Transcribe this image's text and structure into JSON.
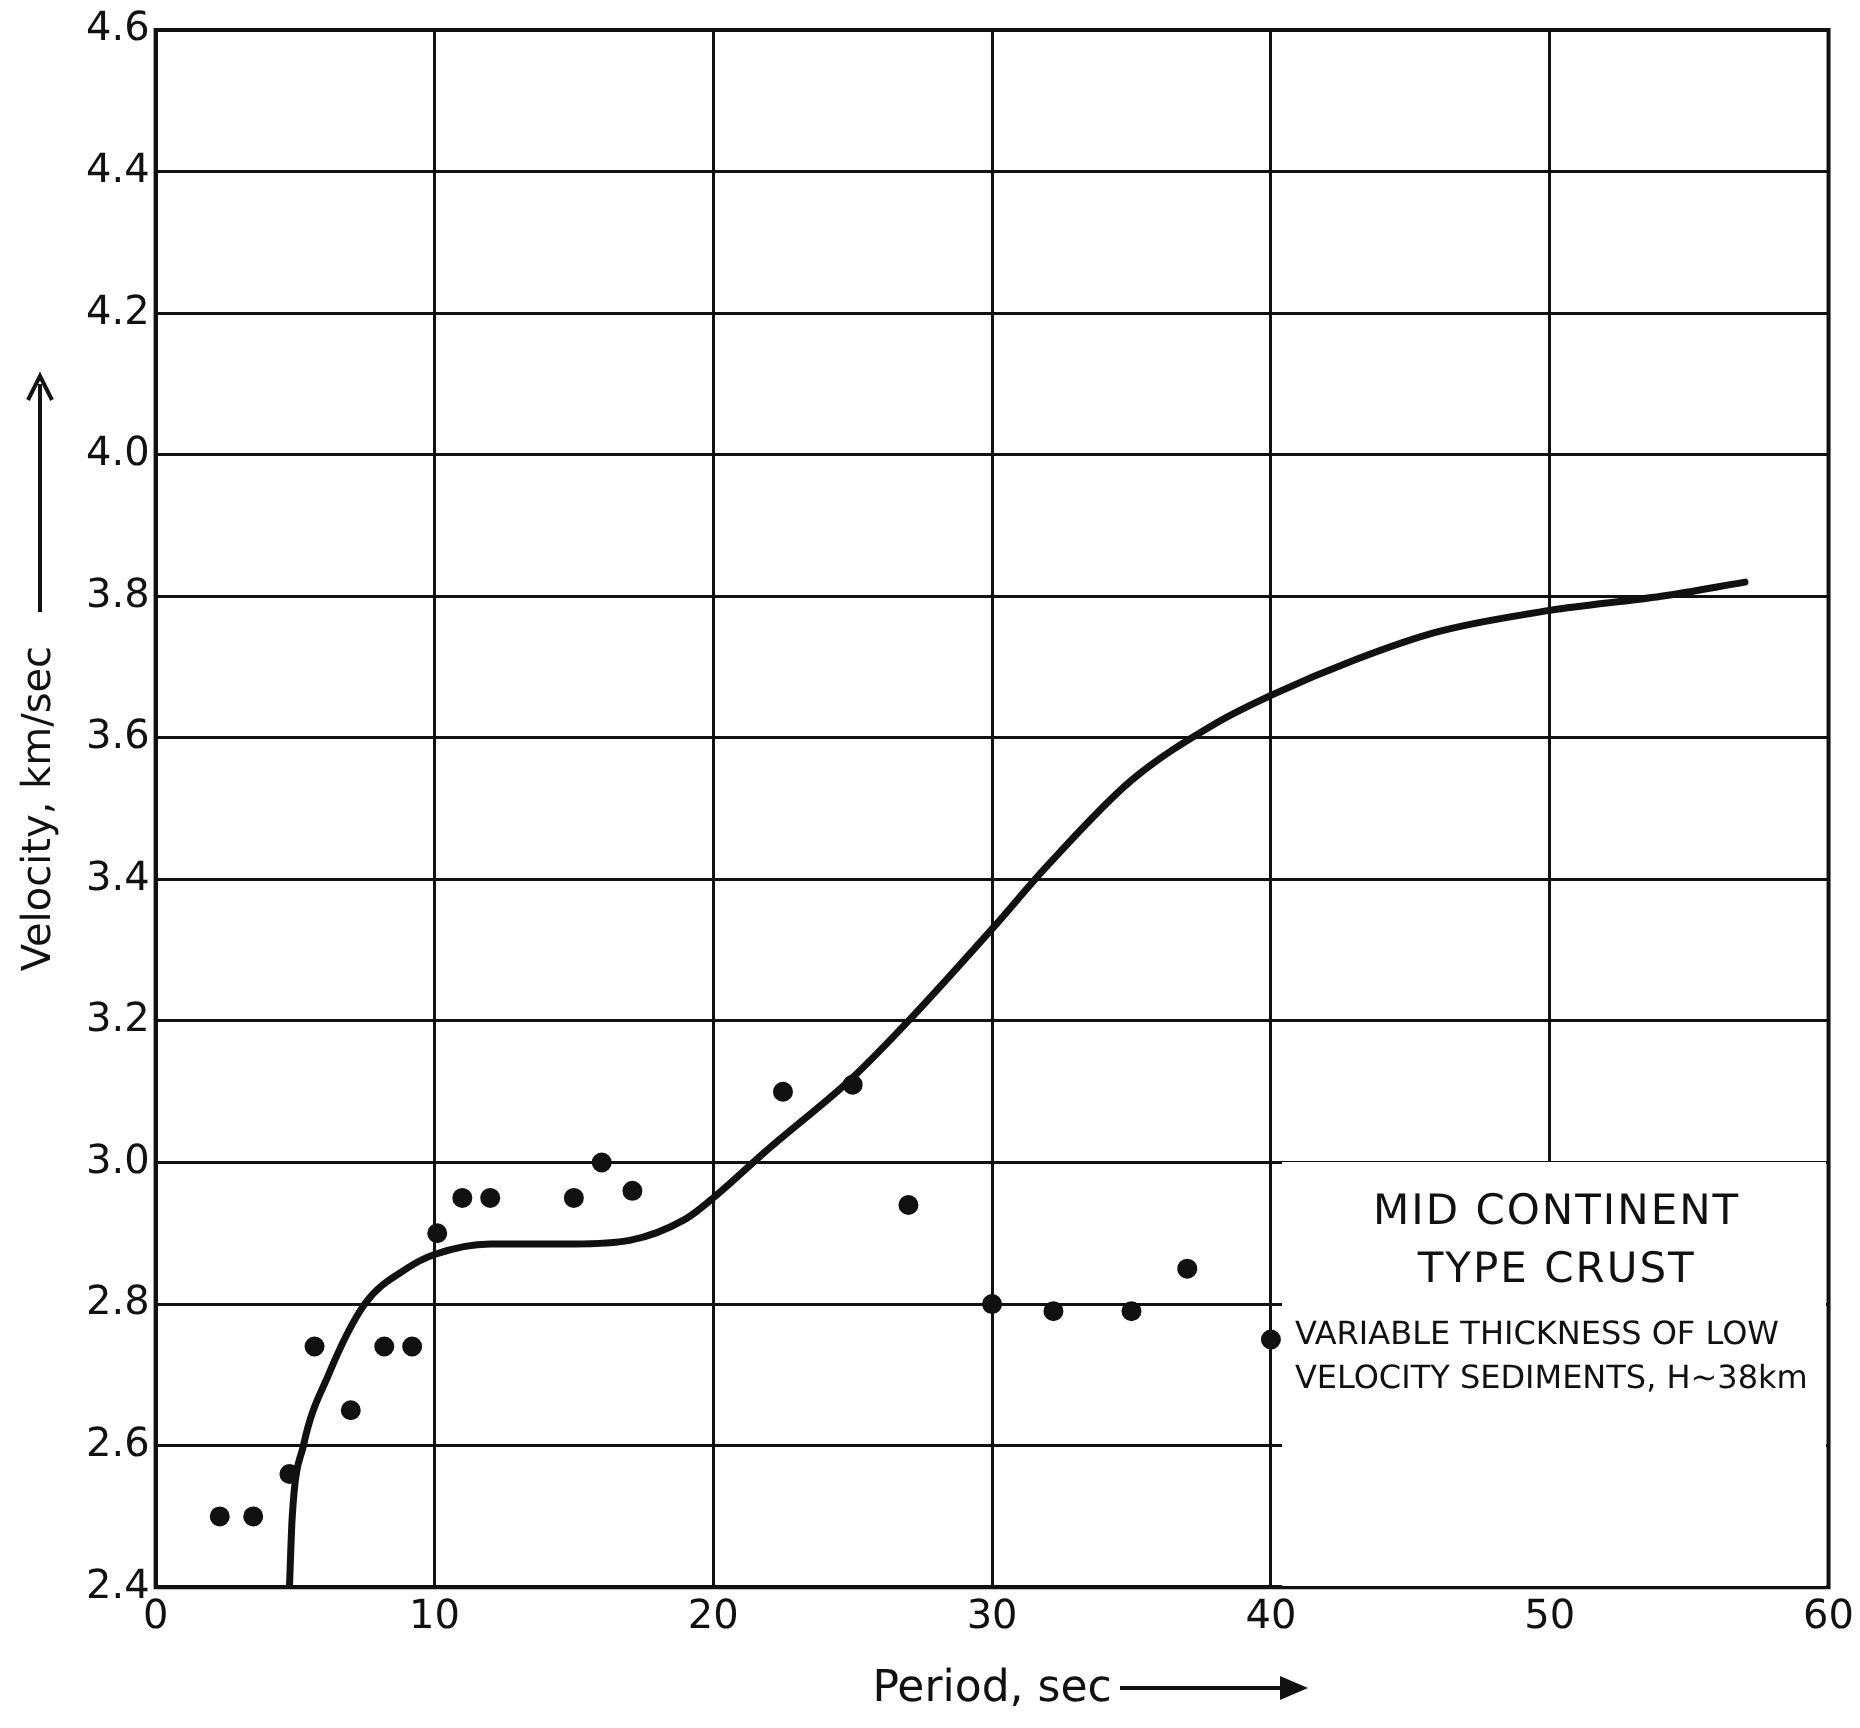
{
  "chart_data": {
    "type": "scatter",
    "xlabel": "Period, sec",
    "ylabel": "Velocity, km/sec",
    "xlim": [
      0,
      60
    ],
    "xticks": [
      0,
      10,
      20,
      30,
      40,
      50,
      60
    ],
    "ylim": [
      2.4,
      4.6
    ],
    "yticks": [
      2.4,
      2.6,
      2.8,
      {
        "value": 3,
        "label": "3.0"
      },
      3.2,
      3.4,
      3.6,
      3.8,
      {
        "value": 4,
        "label": "4.0"
      },
      4.2,
      4.4,
      4.6
    ],
    "grid": true,
    "series": [
      {
        "type": "scatter",
        "marker": "circle",
        "color": "#111111",
        "x": [
          2.3,
          3.5,
          4.8,
          5.7,
          7.0,
          8.2,
          9.2,
          10.1,
          11.0,
          12.0,
          15.0,
          16.0,
          17.1,
          22.5,
          25.0,
          27.0,
          30.0,
          32.2,
          35.0,
          37.0,
          40.0
        ],
        "values": [
          2.5,
          2.5,
          2.56,
          2.74,
          2.65,
          2.74,
          2.74,
          2.9,
          2.95,
          2.95,
          2.95,
          3.0,
          2.96,
          3.1,
          3.11,
          2.94,
          2.8,
          2.79,
          2.79,
          2.85,
          2.75
        ]
      },
      {
        "type": "line",
        "marker": "none",
        "color": "#111111",
        "x": [
          4.8,
          4.9,
          5.3,
          6.2,
          7.5,
          9,
          10,
          12,
          15,
          17,
          19,
          20,
          22,
          25,
          27,
          30,
          32,
          35,
          38,
          40,
          43,
          46,
          50,
          54,
          57
        ],
        "values": [
          2.4,
          2.5,
          2.6,
          2.7,
          2.8,
          2.85,
          2.87,
          2.885,
          2.885,
          2.89,
          2.92,
          2.95,
          3.02,
          3.12,
          3.2,
          3.33,
          3.42,
          3.54,
          3.62,
          3.66,
          3.71,
          3.75,
          3.78,
          3.8,
          3.82
        ]
      }
    ],
    "annotations": [
      "MID CONTINENT TYPE CRUST",
      "VARIABLE THICKNESS OF LOW VELOCITY SEDIMENTS, H~38km"
    ]
  }
}
